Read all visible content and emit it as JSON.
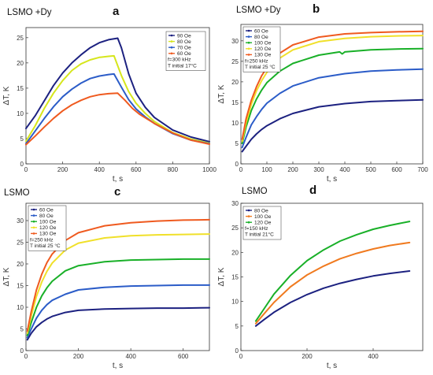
{
  "chart_data": [
    {
      "panel": "a",
      "type": "line",
      "title": "LSMO +Dy",
      "xlabel": "t, s",
      "ylabel": "ΔT, K",
      "xlim": [
        0,
        1000
      ],
      "ylim": [
        0,
        27
      ],
      "xticks": [
        0,
        200,
        400,
        600,
        800,
        1000
      ],
      "yticks": [
        0,
        5,
        10,
        15,
        20,
        25
      ],
      "legend_position": "top-right",
      "legend_notes": [
        "f=300 kHz",
        "T initial 17°C"
      ],
      "series": [
        {
          "name": "90 Oe",
          "color": "#1c2180",
          "x": [
            0,
            50,
            100,
            150,
            200,
            250,
            300,
            350,
            400,
            450,
            500,
            520,
            560,
            600,
            650,
            700,
            800,
            900,
            1000
          ],
          "y": [
            7,
            9.5,
            12.5,
            15.5,
            18,
            20,
            21.6,
            23,
            24,
            24.6,
            24.9,
            23,
            17.8,
            14,
            11.2,
            9.2,
            6.7,
            5.3,
            4.4
          ]
        },
        {
          "name": "80 Oe",
          "color": "#d6e61c",
          "x": [
            0,
            50,
            100,
            150,
            200,
            250,
            300,
            350,
            400,
            450,
            480,
            520,
            560,
            600,
            650,
            700,
            800,
            900,
            1000
          ],
          "y": [
            4.5,
            7.5,
            11,
            14,
            16.5,
            18.5,
            19.8,
            20.6,
            21.1,
            21.3,
            21.4,
            17.5,
            14.3,
            12,
            10,
            8.4,
            6.2,
            4.9,
            4.1
          ]
        },
        {
          "name": "70 Oe",
          "color": "#2b5cc8",
          "x": [
            0,
            50,
            100,
            150,
            200,
            250,
            300,
            350,
            400,
            450,
            480,
            520,
            560,
            600,
            650,
            700,
            800,
            900,
            1000
          ],
          "y": [
            4,
            6.5,
            9,
            11.3,
            13.3,
            14.8,
            16,
            16.9,
            17.4,
            17.7,
            17.8,
            15.2,
            12.7,
            10.9,
            9.3,
            8,
            6,
            4.7,
            4
          ]
        },
        {
          "name": "60 Oe",
          "color": "#ef5a1f",
          "x": [
            0,
            50,
            100,
            150,
            200,
            250,
            300,
            350,
            400,
            450,
            500,
            540,
            580,
            620,
            700,
            800,
            900,
            1000
          ],
          "y": [
            3.8,
            5.5,
            7.3,
            9,
            10.5,
            11.7,
            12.6,
            13.3,
            13.7,
            13.9,
            14,
            12.6,
            11,
            9.8,
            8,
            6.1,
            4.7,
            3.9
          ]
        }
      ]
    },
    {
      "panel": "b",
      "type": "line",
      "title": "LSMO +Dy",
      "xlabel": "t, s",
      "ylabel": "ΔT, K",
      "xlim": [
        0,
        700
      ],
      "ylim": [
        0,
        34
      ],
      "xticks": [
        0,
        100,
        200,
        300,
        400,
        500,
        600,
        700
      ],
      "yticks": [
        0,
        5,
        10,
        15,
        20,
        25,
        30
      ],
      "legend_position": "top-left",
      "legend_notes": [
        "f=250 kHz",
        "T initial 25 °C"
      ],
      "series": [
        {
          "name": "60 Oe",
          "color": "#1c2180",
          "x": [
            5,
            20,
            40,
            60,
            80,
            100,
            150,
            200,
            300,
            400,
            500,
            600,
            700
          ],
          "y": [
            3,
            4.3,
            6,
            7.3,
            8.4,
            9.3,
            11,
            12.3,
            13.9,
            14.7,
            15.2,
            15.4,
            15.6
          ]
        },
        {
          "name": "80 Oe",
          "color": "#2b5cc8",
          "x": [
            5,
            20,
            40,
            60,
            80,
            100,
            150,
            200,
            300,
            400,
            500,
            600,
            700
          ],
          "y": [
            4,
            6.5,
            9.5,
            11.5,
            13.3,
            14.8,
            17.2,
            19,
            21,
            22,
            22.6,
            22.9,
            23.1
          ]
        },
        {
          "name": "100 Oe",
          "color": "#19b028",
          "x": [
            5,
            20,
            40,
            60,
            80,
            100,
            150,
            200,
            300,
            380,
            390,
            400,
            500,
            600,
            700
          ],
          "y": [
            5,
            9,
            13,
            15.8,
            18,
            19.8,
            22.6,
            24.5,
            26.5,
            27.3,
            26.8,
            27.3,
            27.8,
            28,
            28.1
          ]
        },
        {
          "name": "120 Oe",
          "color": "#f0e02a",
          "x": [
            5,
            20,
            40,
            60,
            80,
            100,
            150,
            200,
            300,
            400,
            500,
            600,
            700
          ],
          "y": [
            5.5,
            10,
            14.5,
            17.8,
            20.3,
            22.3,
            25.8,
            27.8,
            29.8,
            30.6,
            31,
            31.2,
            31.3
          ]
        },
        {
          "name": "130 Oe",
          "color": "#ef5a1f",
          "x": [
            5,
            20,
            40,
            60,
            80,
            100,
            150,
            200,
            300,
            400,
            500,
            600,
            700
          ],
          "y": [
            6,
            11,
            15.5,
            18.8,
            21.5,
            23.5,
            27,
            29,
            30.9,
            31.7,
            32,
            32.2,
            32.3
          ]
        }
      ]
    },
    {
      "panel": "c",
      "type": "line",
      "title": "LSMO",
      "xlabel": "t, s",
      "ylabel": "ΔT, K",
      "xlim": [
        0,
        700
      ],
      "ylim": [
        0,
        34
      ],
      "xticks": [
        0,
        200,
        400,
        600
      ],
      "yticks": [
        0,
        5,
        10,
        15,
        20,
        25,
        30
      ],
      "legend_position": "top-left",
      "legend_notes": [
        "f=250 kHz",
        "T initial 25 °C"
      ],
      "series": [
        {
          "name": "60 Oe",
          "color": "#1c2180",
          "x": [
            5,
            20,
            40,
            60,
            80,
            100,
            150,
            200,
            300,
            400,
            500,
            600,
            700
          ],
          "y": [
            2.5,
            4,
            5.5,
            6.5,
            7.3,
            7.9,
            8.8,
            9.3,
            9.6,
            9.7,
            9.8,
            9.8,
            9.9
          ]
        },
        {
          "name": "80 Oe",
          "color": "#2b5cc8",
          "x": [
            5,
            20,
            40,
            60,
            80,
            100,
            150,
            200,
            300,
            400,
            500,
            600,
            700
          ],
          "y": [
            3,
            5,
            7.5,
            9.3,
            10.6,
            11.6,
            13,
            14,
            14.6,
            14.9,
            15,
            15.1,
            15.1
          ]
        },
        {
          "name": "100 Oe",
          "color": "#19b028",
          "x": [
            5,
            20,
            40,
            60,
            80,
            100,
            150,
            200,
            300,
            400,
            500,
            600,
            700
          ],
          "y": [
            3.5,
            6.5,
            10,
            12.6,
            14.5,
            16,
            18.4,
            19.6,
            20.5,
            20.9,
            21,
            21.1,
            21.1
          ]
        },
        {
          "name": "120 Oe",
          "color": "#f0e02a",
          "x": [
            5,
            20,
            40,
            60,
            80,
            100,
            150,
            200,
            300,
            400,
            500,
            600,
            700
          ],
          "y": [
            4,
            8,
            12.5,
            15.8,
            18.3,
            20.2,
            23.2,
            24.8,
            26,
            26.5,
            26.7,
            26.8,
            26.9
          ]
        },
        {
          "name": "130 Oe",
          "color": "#ef5a1f",
          "x": [
            5,
            20,
            40,
            60,
            80,
            100,
            150,
            200,
            300,
            400,
            500,
            600,
            700
          ],
          "y": [
            4.5,
            9,
            14,
            17.6,
            20.3,
            22.3,
            25.4,
            27.2,
            28.8,
            29.5,
            29.9,
            30.1,
            30.2
          ]
        }
      ]
    },
    {
      "panel": "d",
      "type": "line",
      "title": "LSMO",
      "xlabel": "t, s",
      "ylabel": "ΔT, K",
      "xlim": [
        0,
        550
      ],
      "ylim": [
        0,
        30
      ],
      "xticks": [
        0,
        200,
        400
      ],
      "yticks": [
        0,
        5,
        10,
        15,
        20,
        25,
        30
      ],
      "legend_position": "top-left",
      "legend_notes": [
        "f=150 kHz",
        "T initial 21°C"
      ],
      "series": [
        {
          "name": "80 Oe",
          "color": "#1c2180",
          "x": [
            45,
            70,
            100,
            150,
            200,
            250,
            300,
            350,
            400,
            450,
            510
          ],
          "y": [
            5,
            6.3,
            7.8,
            9.8,
            11.4,
            12.7,
            13.7,
            14.5,
            15.2,
            15.7,
            16.2
          ]
        },
        {
          "name": "100 Oe",
          "color": "#f07a1f",
          "x": [
            45,
            70,
            100,
            150,
            200,
            250,
            300,
            350,
            400,
            450,
            510
          ],
          "y": [
            5.5,
            7.5,
            9.8,
            13,
            15.4,
            17.2,
            18.7,
            19.8,
            20.7,
            21.4,
            22
          ]
        },
        {
          "name": "120 Oe",
          "color": "#19b028",
          "x": [
            45,
            70,
            100,
            150,
            200,
            250,
            300,
            350,
            400,
            450,
            510
          ],
          "y": [
            6,
            8.5,
            11.5,
            15.3,
            18.3,
            20.5,
            22.3,
            23.6,
            24.7,
            25.5,
            26.3
          ]
        }
      ]
    }
  ],
  "panel_letters": [
    "a",
    "b",
    "c",
    "d"
  ]
}
